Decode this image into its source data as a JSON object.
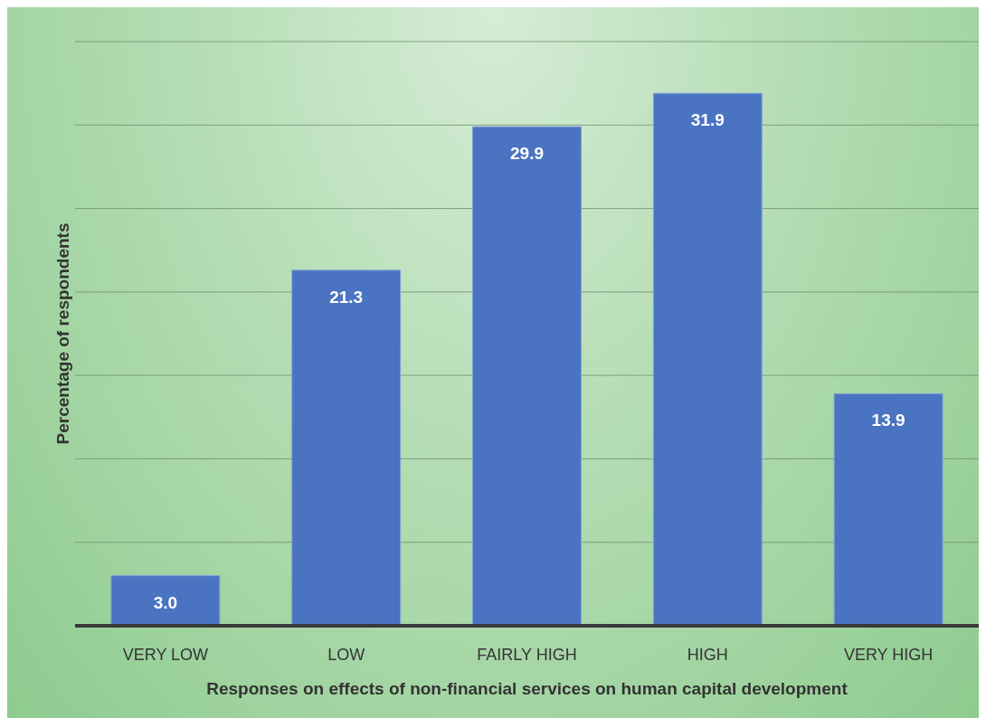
{
  "chart_data": {
    "type": "bar",
    "xlabel": "Responses on effects of non-financial services on human capital development",
    "ylabel": "Percentage of respondents",
    "categories": [
      "VERY LOW",
      "LOW",
      "FAIRLY HIGH",
      "HIGH",
      "VERY HIGH"
    ],
    "values": [
      3.0,
      21.3,
      29.9,
      31.9,
      13.9
    ],
    "value_labels": [
      "3.0",
      "21.3",
      "29.9",
      "31.9",
      "13.9"
    ],
    "color": "#4a73c2",
    "ylim": [
      0,
      35
    ],
    "yticks": [
      {
        "value": 0,
        "label": null
      },
      {
        "value": 5,
        "label": null
      },
      {
        "value": 10,
        "label": null
      },
      {
        "value": 15,
        "label": null
      },
      {
        "value": 20,
        "label": null
      },
      {
        "value": 25,
        "label": null
      },
      {
        "value": 30,
        "label": null
      },
      {
        "value": 35,
        "label": null
      }
    ],
    "grid": "y"
  }
}
